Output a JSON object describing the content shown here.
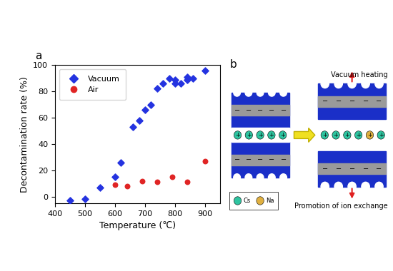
{
  "chart_data": {
    "type": "scatter",
    "title": "a",
    "x_label": "Temperature (℃)",
    "y_label": "Decontamination rate (%)",
    "xlim": [
      400,
      950
    ],
    "xticks": [
      400,
      500,
      600,
      700,
      800,
      900
    ],
    "ylim": [
      -5,
      100
    ],
    "yticks": [
      0,
      20,
      40,
      60,
      80,
      100
    ],
    "legend": "upper left",
    "grid": false,
    "series": [
      {
        "name": "Vacuum",
        "color": "#2433e0",
        "marker": "diamond",
        "x": [
          450,
          500,
          550,
          600,
          620,
          660,
          680,
          700,
          720,
          740,
          760,
          780,
          800,
          800,
          820,
          840,
          840,
          860,
          900
        ],
        "values": [
          -3,
          -2,
          7,
          15,
          26,
          53,
          58,
          66,
          70,
          82,
          86,
          90,
          86,
          89,
          86,
          89,
          91,
          90,
          96
        ]
      },
      {
        "name": "Air",
        "color": "#e02424",
        "marker": "circle",
        "x": [
          600,
          640,
          690,
          740,
          790,
          840,
          900
        ],
        "values": [
          9,
          8,
          12,
          11,
          15,
          11,
          27
        ]
      }
    ]
  },
  "diagram": {
    "panel_label": "b",
    "caption_top": "Vacuum heating",
    "caption_bottom": "Promotion of ion exchange",
    "cation_sign": "+",
    "anion_sign": "−",
    "ions": [
      {
        "label": "Cs",
        "color": "#2ec4a0"
      },
      {
        "label": "Na",
        "color": "#e0b040"
      }
    ]
  }
}
